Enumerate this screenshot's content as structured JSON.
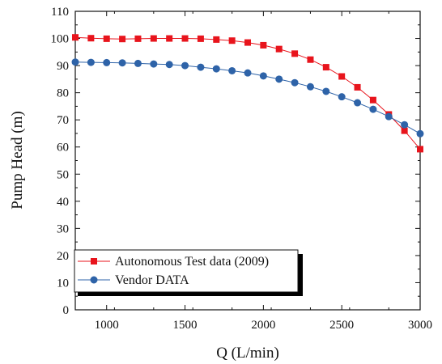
{
  "chart_data": {
    "type": "line",
    "title": "",
    "xlabel": "Q (L/min)",
    "ylabel": "Pump Head (m)",
    "xlim": [
      800,
      3000
    ],
    "ylim": [
      0,
      110
    ],
    "xticks": [
      1000,
      1500,
      2000,
      2500,
      3000
    ],
    "yticks": [
      0,
      10,
      20,
      30,
      40,
      50,
      60,
      70,
      80,
      90,
      100,
      110
    ],
    "xtick_labels": [
      "1000",
      "1500",
      "2000",
      "2500",
      "3000"
    ],
    "ytick_labels": [
      "0",
      "10",
      "20",
      "30",
      "40",
      "50",
      "60",
      "70",
      "80",
      "90",
      "100",
      "110"
    ],
    "grid": false,
    "legend_position": "bottom-left",
    "x": [
      800,
      900,
      1000,
      1100,
      1200,
      1300,
      1400,
      1500,
      1600,
      1700,
      1800,
      1900,
      2000,
      2100,
      2200,
      2300,
      2400,
      2500,
      2600,
      2700,
      2800,
      2900,
      3000
    ],
    "series": [
      {
        "name": "Autonomous Test data (2009)",
        "color": "#e8141c",
        "marker": "square",
        "values": [
          100.4,
          100.1,
          99.9,
          99.8,
          99.9,
          100.0,
          100.0,
          100.0,
          99.9,
          99.6,
          99.2,
          98.5,
          97.5,
          96.1,
          94.4,
          92.2,
          89.4,
          86.0,
          82.0,
          77.3,
          72.0,
          66.0,
          59.2
        ]
      },
      {
        "name": "Vendor DATA",
        "color": "#2e63a8",
        "marker": "circle",
        "values": [
          91.3,
          91.2,
          91.1,
          91.0,
          90.8,
          90.6,
          90.4,
          90.0,
          89.4,
          88.8,
          88.1,
          87.3,
          86.2,
          85.0,
          83.7,
          82.2,
          80.5,
          78.5,
          76.3,
          73.9,
          71.2,
          68.2,
          64.9
        ]
      }
    ]
  }
}
